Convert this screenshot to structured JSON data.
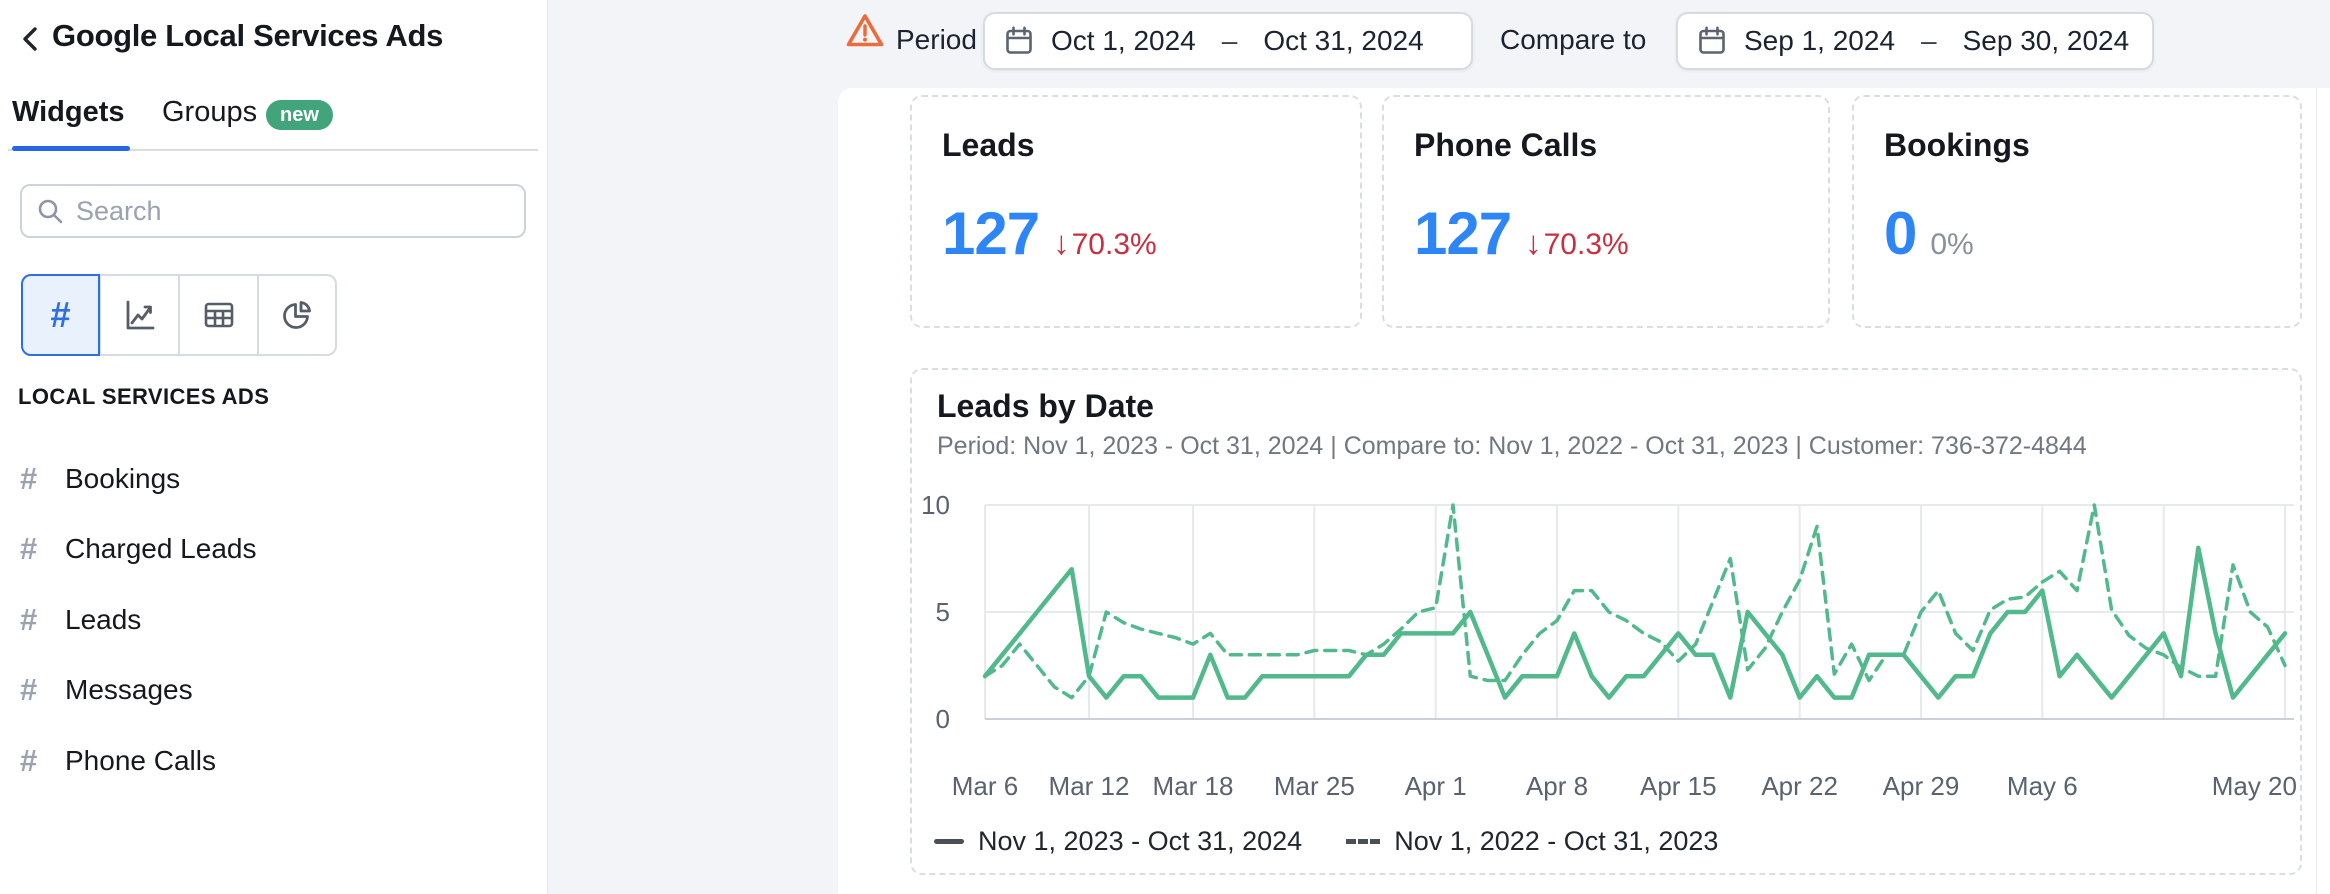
{
  "sidebar": {
    "title": "Google Local Services Ads",
    "tabs": [
      {
        "label": "Widgets",
        "active": true
      },
      {
        "label": "Groups",
        "active": false,
        "badge": "new"
      }
    ],
    "search": {
      "placeholder": "Search"
    },
    "widget_type_buttons": [
      {
        "name": "number",
        "glyph": "#",
        "active": true
      },
      {
        "name": "line-chart",
        "active": false
      },
      {
        "name": "table",
        "active": false
      },
      {
        "name": "pie-chart",
        "active": false
      }
    ],
    "section": {
      "header": "LOCAL SERVICES ADS",
      "items": [
        {
          "label": "Bookings"
        },
        {
          "label": "Charged Leads"
        },
        {
          "label": "Leads"
        },
        {
          "label": "Messages"
        },
        {
          "label": "Phone Calls"
        }
      ]
    }
  },
  "topbar": {
    "period_label": "Period",
    "period": {
      "start": "Oct 1, 2024",
      "separator": "–",
      "end": "Oct 31, 2024"
    },
    "compare_label": "Compare to",
    "compare": {
      "start": "Sep 1, 2024",
      "separator": "–",
      "end": "Sep 30, 2024"
    }
  },
  "kpis": [
    {
      "title": "Leads",
      "value": "127",
      "delta_arrow": "↓",
      "delta": "70.3%"
    },
    {
      "title": "Phone Calls",
      "value": "127",
      "delta_arrow": "↓",
      "delta": "70.3%"
    },
    {
      "title": "Bookings",
      "value": "0",
      "delta_arrow": "",
      "delta": "0%"
    }
  ],
  "chart_card": {
    "title": "Leads by Date",
    "subtitle": "Period: Nov 1, 2023 - Oct 31, 2024 | Compare to: Nov 1, 2022 - Oct 31, 2023 | Customer: 736-372-4844"
  },
  "chart_data": {
    "type": "line",
    "title": "Leads by Date",
    "line_color": "#52b98c",
    "ylim": [
      0,
      10
    ],
    "yticks": [
      0,
      5,
      10
    ],
    "grid": true,
    "legend_position": "bottom",
    "x": [
      "Mar 6",
      "Mar 7",
      "Mar 8",
      "Mar 9",
      "Mar 10",
      "Mar 11",
      "Mar 12",
      "Mar 13",
      "Mar 14",
      "Mar 15",
      "Mar 16",
      "Mar 17",
      "Mar 18",
      "Mar 19",
      "Mar 20",
      "Mar 21",
      "Mar 22",
      "Mar 23",
      "Mar 24",
      "Mar 25",
      "Mar 26",
      "Mar 27",
      "Mar 28",
      "Mar 29",
      "Mar 30",
      "Mar 31",
      "Apr 1",
      "Apr 2",
      "Apr 3",
      "Apr 4",
      "Apr 5",
      "Apr 6",
      "Apr 7",
      "Apr 8",
      "Apr 9",
      "Apr 10",
      "Apr 11",
      "Apr 12",
      "Apr 13",
      "Apr 14",
      "Apr 15",
      "Apr 16",
      "Apr 17",
      "Apr 18",
      "Apr 19",
      "Apr 20",
      "Apr 21",
      "Apr 22",
      "Apr 23",
      "Apr 24",
      "Apr 25",
      "Apr 26",
      "Apr 27",
      "Apr 28",
      "Apr 29",
      "Apr 30",
      "May 1",
      "May 2",
      "May 3",
      "May 4",
      "May 5",
      "May 6",
      "May 7",
      "May 8",
      "May 9",
      "May 10",
      "May 11",
      "May 12",
      "May 13",
      "May 14",
      "May 15",
      "May 16",
      "May 17",
      "May 18",
      "May 19",
      "May 20"
    ],
    "xticks": [
      {
        "label": "Mar 6",
        "index": 0
      },
      {
        "label": "Mar 12",
        "index": 6
      },
      {
        "label": "Mar 18",
        "index": 12
      },
      {
        "label": "Mar 25",
        "index": 19
      },
      {
        "label": "Apr 1",
        "index": 26
      },
      {
        "label": "Apr 8",
        "index": 33
      },
      {
        "label": "Apr 15",
        "index": 40
      },
      {
        "label": "Apr 22",
        "index": 47
      },
      {
        "label": "Apr 29",
        "index": 54
      },
      {
        "label": "May 6",
        "index": 61
      },
      {
        "label": "May 20",
        "index": 75
      }
    ],
    "grid_indices": [
      0,
      6,
      12,
      19,
      26,
      33,
      40,
      47,
      54,
      61,
      68,
      75
    ],
    "series": [
      {
        "name": "Nov 1, 2023 - Oct 31, 2024",
        "style": "solid",
        "values": [
          2,
          3,
          4,
          5,
          6,
          7,
          2,
          1,
          2,
          2,
          1,
          1,
          1,
          3,
          1,
          1,
          2,
          2,
          2,
          2,
          2,
          2,
          3,
          3,
          4,
          4,
          4,
          4,
          5,
          3,
          1,
          2,
          2,
          2,
          4,
          2,
          1,
          2,
          2,
          3,
          4,
          3,
          3,
          1,
          5,
          4,
          3,
          1,
          2,
          1,
          1,
          3,
          3,
          3,
          2,
          1,
          2,
          2,
          4,
          5,
          5,
          6,
          2,
          3,
          2,
          1,
          2,
          3,
          4,
          2,
          8,
          4,
          1,
          2,
          3,
          4
        ]
      },
      {
        "name": "Nov 1, 2022 - Oct 31, 2023",
        "style": "dashed",
        "values": [
          2,
          2.5,
          3.5,
          2.5,
          1.5,
          1,
          2,
          5,
          4.5,
          4.2,
          4,
          3.8,
          3.5,
          4,
          3,
          3,
          3,
          3,
          3,
          3.2,
          3.2,
          3.2,
          3,
          3.5,
          4.2,
          5,
          5.2,
          10,
          2,
          1.8,
          1.8,
          3,
          4,
          4.6,
          6,
          6,
          5,
          4.6,
          4,
          3.6,
          2.7,
          3.5,
          5.5,
          7.5,
          2.3,
          3.3,
          5,
          6.5,
          9,
          2.1,
          3.5,
          1.8,
          3,
          3,
          5,
          6,
          4,
          3.2,
          5.1,
          5.6,
          5.7,
          6.4,
          6.9,
          6,
          10,
          5.1,
          3.9,
          3.3,
          3,
          2.4,
          2,
          2,
          7.2,
          5,
          4.3,
          2.5
        ]
      }
    ]
  },
  "colors": {
    "accent_blue": "#2566e8",
    "kpi_value_blue": "#2e86f6",
    "negative_red": "#c63040",
    "chart_green": "#52b98c",
    "badge_green": "#41a47b",
    "warning_orange": "#ed6a3a",
    "canvas_gray": "#f2f4f7"
  }
}
